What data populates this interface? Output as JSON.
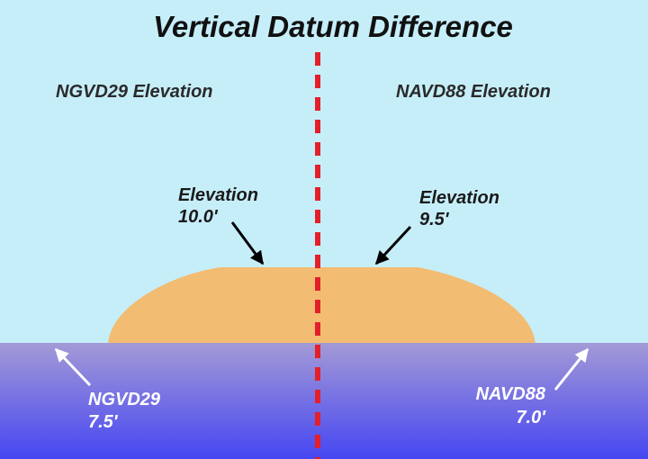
{
  "title": "Vertical Datum Difference",
  "panels": [
    {
      "heading": "NGVD29 Elevation",
      "land_label": [
        "Elevation",
        "10.0'"
      ],
      "datum_label": [
        "NGVD29",
        "7.5'"
      ]
    },
    {
      "heading": "NAVD88 Elevation",
      "land_label": [
        "Elevation",
        "9.5'"
      ],
      "datum_label": [
        "NAVD88",
        "7.0'"
      ]
    }
  ]
}
